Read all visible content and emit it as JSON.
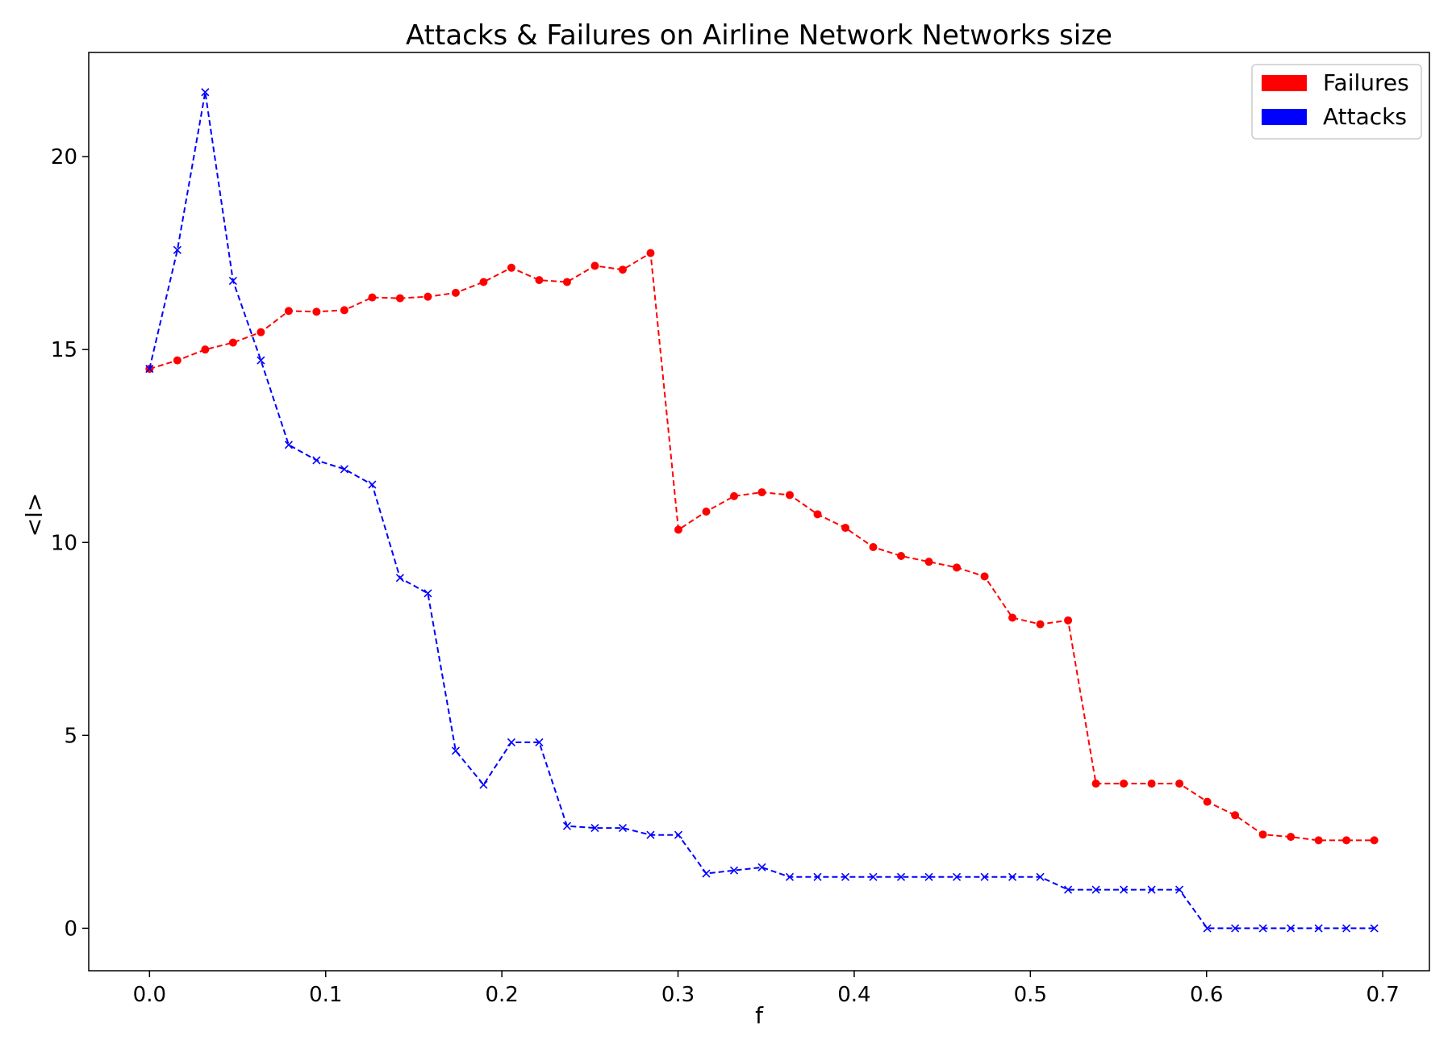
{
  "chart_data": {
    "type": "line",
    "title": "Attacks & Failures on Airline Network Networks size",
    "xlabel": "f",
    "ylabel": "<l>",
    "xlim": [
      -0.0345,
      0.7265
    ],
    "ylim": [
      -1.1,
      22.7
    ],
    "x_ticks": [
      0.0,
      0.1,
      0.2,
      0.3,
      0.4,
      0.5,
      0.6,
      0.7
    ],
    "x_tick_labels": [
      "0.0",
      "0.1",
      "0.2",
      "0.3",
      "0.4",
      "0.5",
      "0.6",
      "0.7"
    ],
    "y_ticks": [
      0,
      5,
      10,
      15,
      20
    ],
    "y_tick_labels": [
      "0",
      "5",
      "10",
      "15",
      "20"
    ],
    "grid": false,
    "legend_position": "top-right",
    "x": [
      0.0,
      0.0158,
      0.0316,
      0.0474,
      0.0632,
      0.079,
      0.0948,
      0.1106,
      0.1264,
      0.1422,
      0.158,
      0.1738,
      0.1896,
      0.2054,
      0.2212,
      0.237,
      0.2528,
      0.2686,
      0.2844,
      0.3002,
      0.316,
      0.3318,
      0.3476,
      0.3634,
      0.3792,
      0.395,
      0.4108,
      0.4266,
      0.4424,
      0.4582,
      0.474,
      0.4898,
      0.5056,
      0.5214,
      0.5372,
      0.553,
      0.5688,
      0.5846,
      0.6004,
      0.6162,
      0.632,
      0.6478,
      0.6636,
      0.6794,
      0.6952
    ],
    "series": [
      {
        "name": "Failures",
        "color": "#ff0000",
        "marker": "circle",
        "values": [
          14.5,
          14.72,
          15.0,
          15.18,
          15.45,
          16.0,
          15.98,
          16.02,
          16.35,
          16.33,
          16.37,
          16.47,
          16.75,
          17.12,
          16.8,
          16.75,
          17.17,
          17.07,
          17.5,
          10.33,
          10.8,
          11.2,
          11.3,
          11.23,
          10.73,
          10.38,
          9.88,
          9.65,
          9.5,
          9.35,
          9.12,
          8.05,
          7.88,
          7.98,
          3.75,
          3.75,
          3.75,
          3.75,
          3.28,
          2.93,
          2.43,
          2.37,
          2.28,
          2.28,
          2.28
        ]
      },
      {
        "name": "Attacks",
        "color": "#0000ff",
        "marker": "x",
        "values": [
          14.5,
          17.58,
          21.67,
          16.78,
          14.72,
          12.53,
          12.13,
          11.9,
          11.5,
          9.08,
          8.68,
          4.6,
          3.72,
          4.82,
          4.82,
          2.65,
          2.6,
          2.6,
          2.42,
          2.42,
          1.42,
          1.5,
          1.58,
          1.33,
          1.33,
          1.33,
          1.33,
          1.33,
          1.33,
          1.33,
          1.33,
          1.33,
          1.33,
          1.0,
          1.0,
          1.0,
          1.0,
          1.0,
          0.0,
          0.0,
          0.0,
          0.0,
          0.0,
          0.0,
          0.0
        ]
      }
    ]
  }
}
